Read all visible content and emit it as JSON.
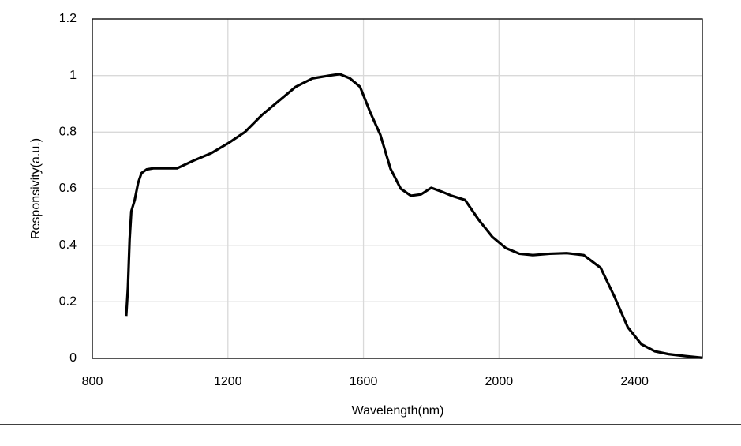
{
  "chart_data": {
    "type": "line",
    "x_label": "Wavelength(nm)",
    "y_label": "Responsivity(a.u.)",
    "x": [
      900,
      905,
      910,
      915,
      925,
      935,
      945,
      960,
      980,
      1000,
      1050,
      1100,
      1150,
      1200,
      1250,
      1300,
      1350,
      1400,
      1450,
      1500,
      1530,
      1560,
      1590,
      1620,
      1650,
      1680,
      1710,
      1740,
      1770,
      1800,
      1830,
      1860,
      1900,
      1940,
      1980,
      2020,
      2060,
      2100,
      2150,
      2200,
      2250,
      2300,
      2340,
      2380,
      2420,
      2460,
      2500,
      2550,
      2600
    ],
    "series": [
      {
        "name": "Responsivity",
        "color": "#000000",
        "values": [
          0.15,
          0.25,
          0.42,
          0.52,
          0.56,
          0.62,
          0.655,
          0.668,
          0.672,
          0.672,
          0.672,
          0.7,
          0.725,
          0.76,
          0.8,
          0.86,
          0.91,
          0.96,
          0.99,
          1.0,
          1.005,
          0.99,
          0.96,
          0.87,
          0.79,
          0.67,
          0.6,
          0.575,
          0.58,
          0.603,
          0.59,
          0.575,
          0.56,
          0.49,
          0.43,
          0.39,
          0.37,
          0.365,
          0.37,
          0.372,
          0.365,
          0.32,
          0.22,
          0.11,
          0.05,
          0.025,
          0.015,
          0.008,
          0.002
        ]
      }
    ],
    "xlim": [
      800,
      2600
    ],
    "xticks": [
      800,
      1200,
      1600,
      2000,
      2400
    ],
    "ylim": [
      0,
      1.2
    ],
    "yticks": [
      0,
      0.2,
      0.4,
      0.6,
      0.8,
      1,
      1.2
    ],
    "grid": true
  }
}
